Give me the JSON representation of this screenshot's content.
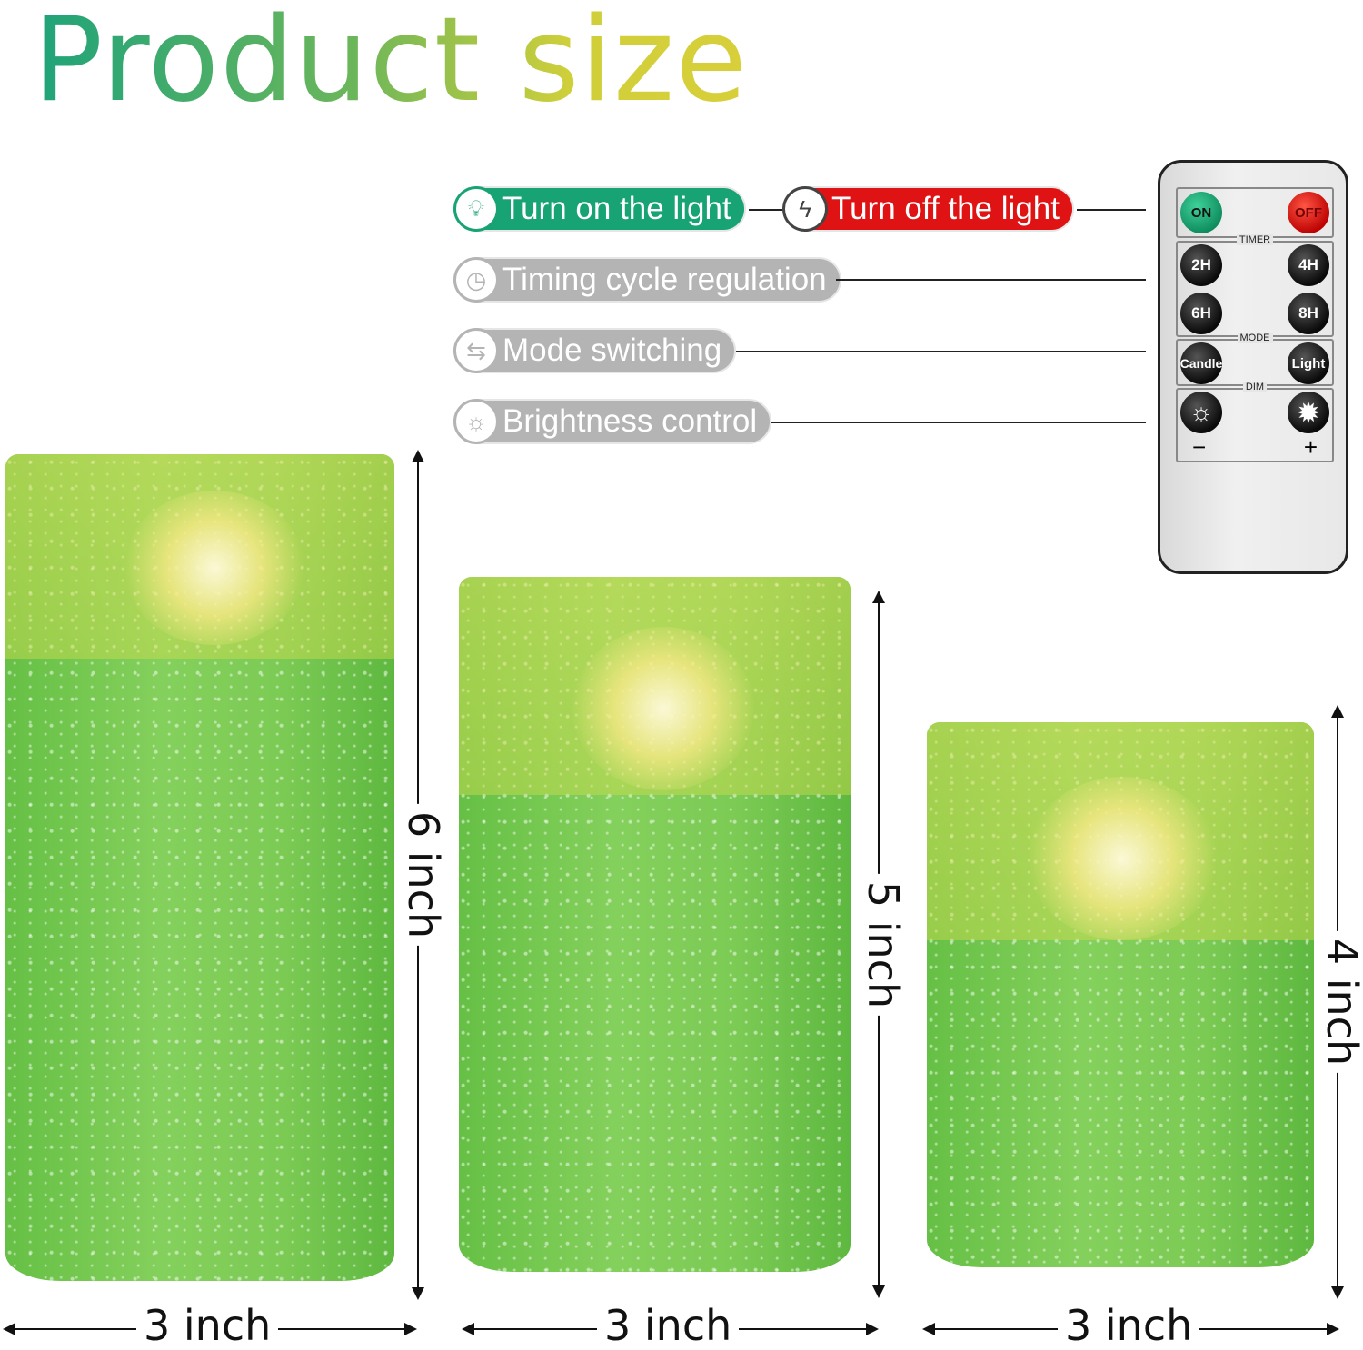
{
  "title": "Product size",
  "features": [
    {
      "label": "Turn on the light",
      "icon": "lightbulb-icon",
      "color": "#17a374"
    },
    {
      "label": "Turn off the light",
      "icon": "power-off-icon",
      "color": "#df1313"
    },
    {
      "label": "Timing cycle regulation",
      "icon": "clock-icon",
      "color": "#b4b4b4"
    },
    {
      "label": "Mode switching",
      "icon": "switch-arrows-icon",
      "color": "#b4b4b4"
    },
    {
      "label": "Brightness control",
      "icon": "sun-icon",
      "color": "#b4b4b4"
    }
  ],
  "remote": {
    "on": "ON",
    "off": "OFF",
    "timer_label": "TIMER",
    "timer": [
      "2H",
      "4H",
      "6H",
      "8H"
    ],
    "mode_label": "MODE",
    "modes": [
      "Candle",
      "Light"
    ],
    "dim_label": "DIM",
    "dim_minus": "−",
    "dim_plus": "+"
  },
  "candles": [
    {
      "height": "6 inch",
      "width": "3 inch"
    },
    {
      "height": "5 inch",
      "width": "3 inch"
    },
    {
      "height": "4 inch",
      "width": "3 inch"
    }
  ]
}
